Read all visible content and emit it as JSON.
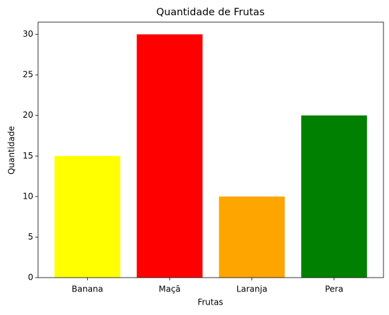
{
  "chart_data": {
    "type": "bar",
    "title": "Quantidade de Frutas",
    "x_label": "Frutas",
    "y_label": "Quantidade",
    "categories": [
      "Banana",
      "Maçã",
      "Laranja",
      "Pera"
    ],
    "values": [
      15,
      30,
      10,
      20
    ],
    "colors": [
      "#ffff00",
      "#ff0000",
      "#ffa500",
      "#008000"
    ],
    "ylim": [
      0,
      31.5
    ],
    "yticks": [
      0,
      5,
      10,
      15,
      20,
      25,
      30
    ],
    "grid": false
  }
}
